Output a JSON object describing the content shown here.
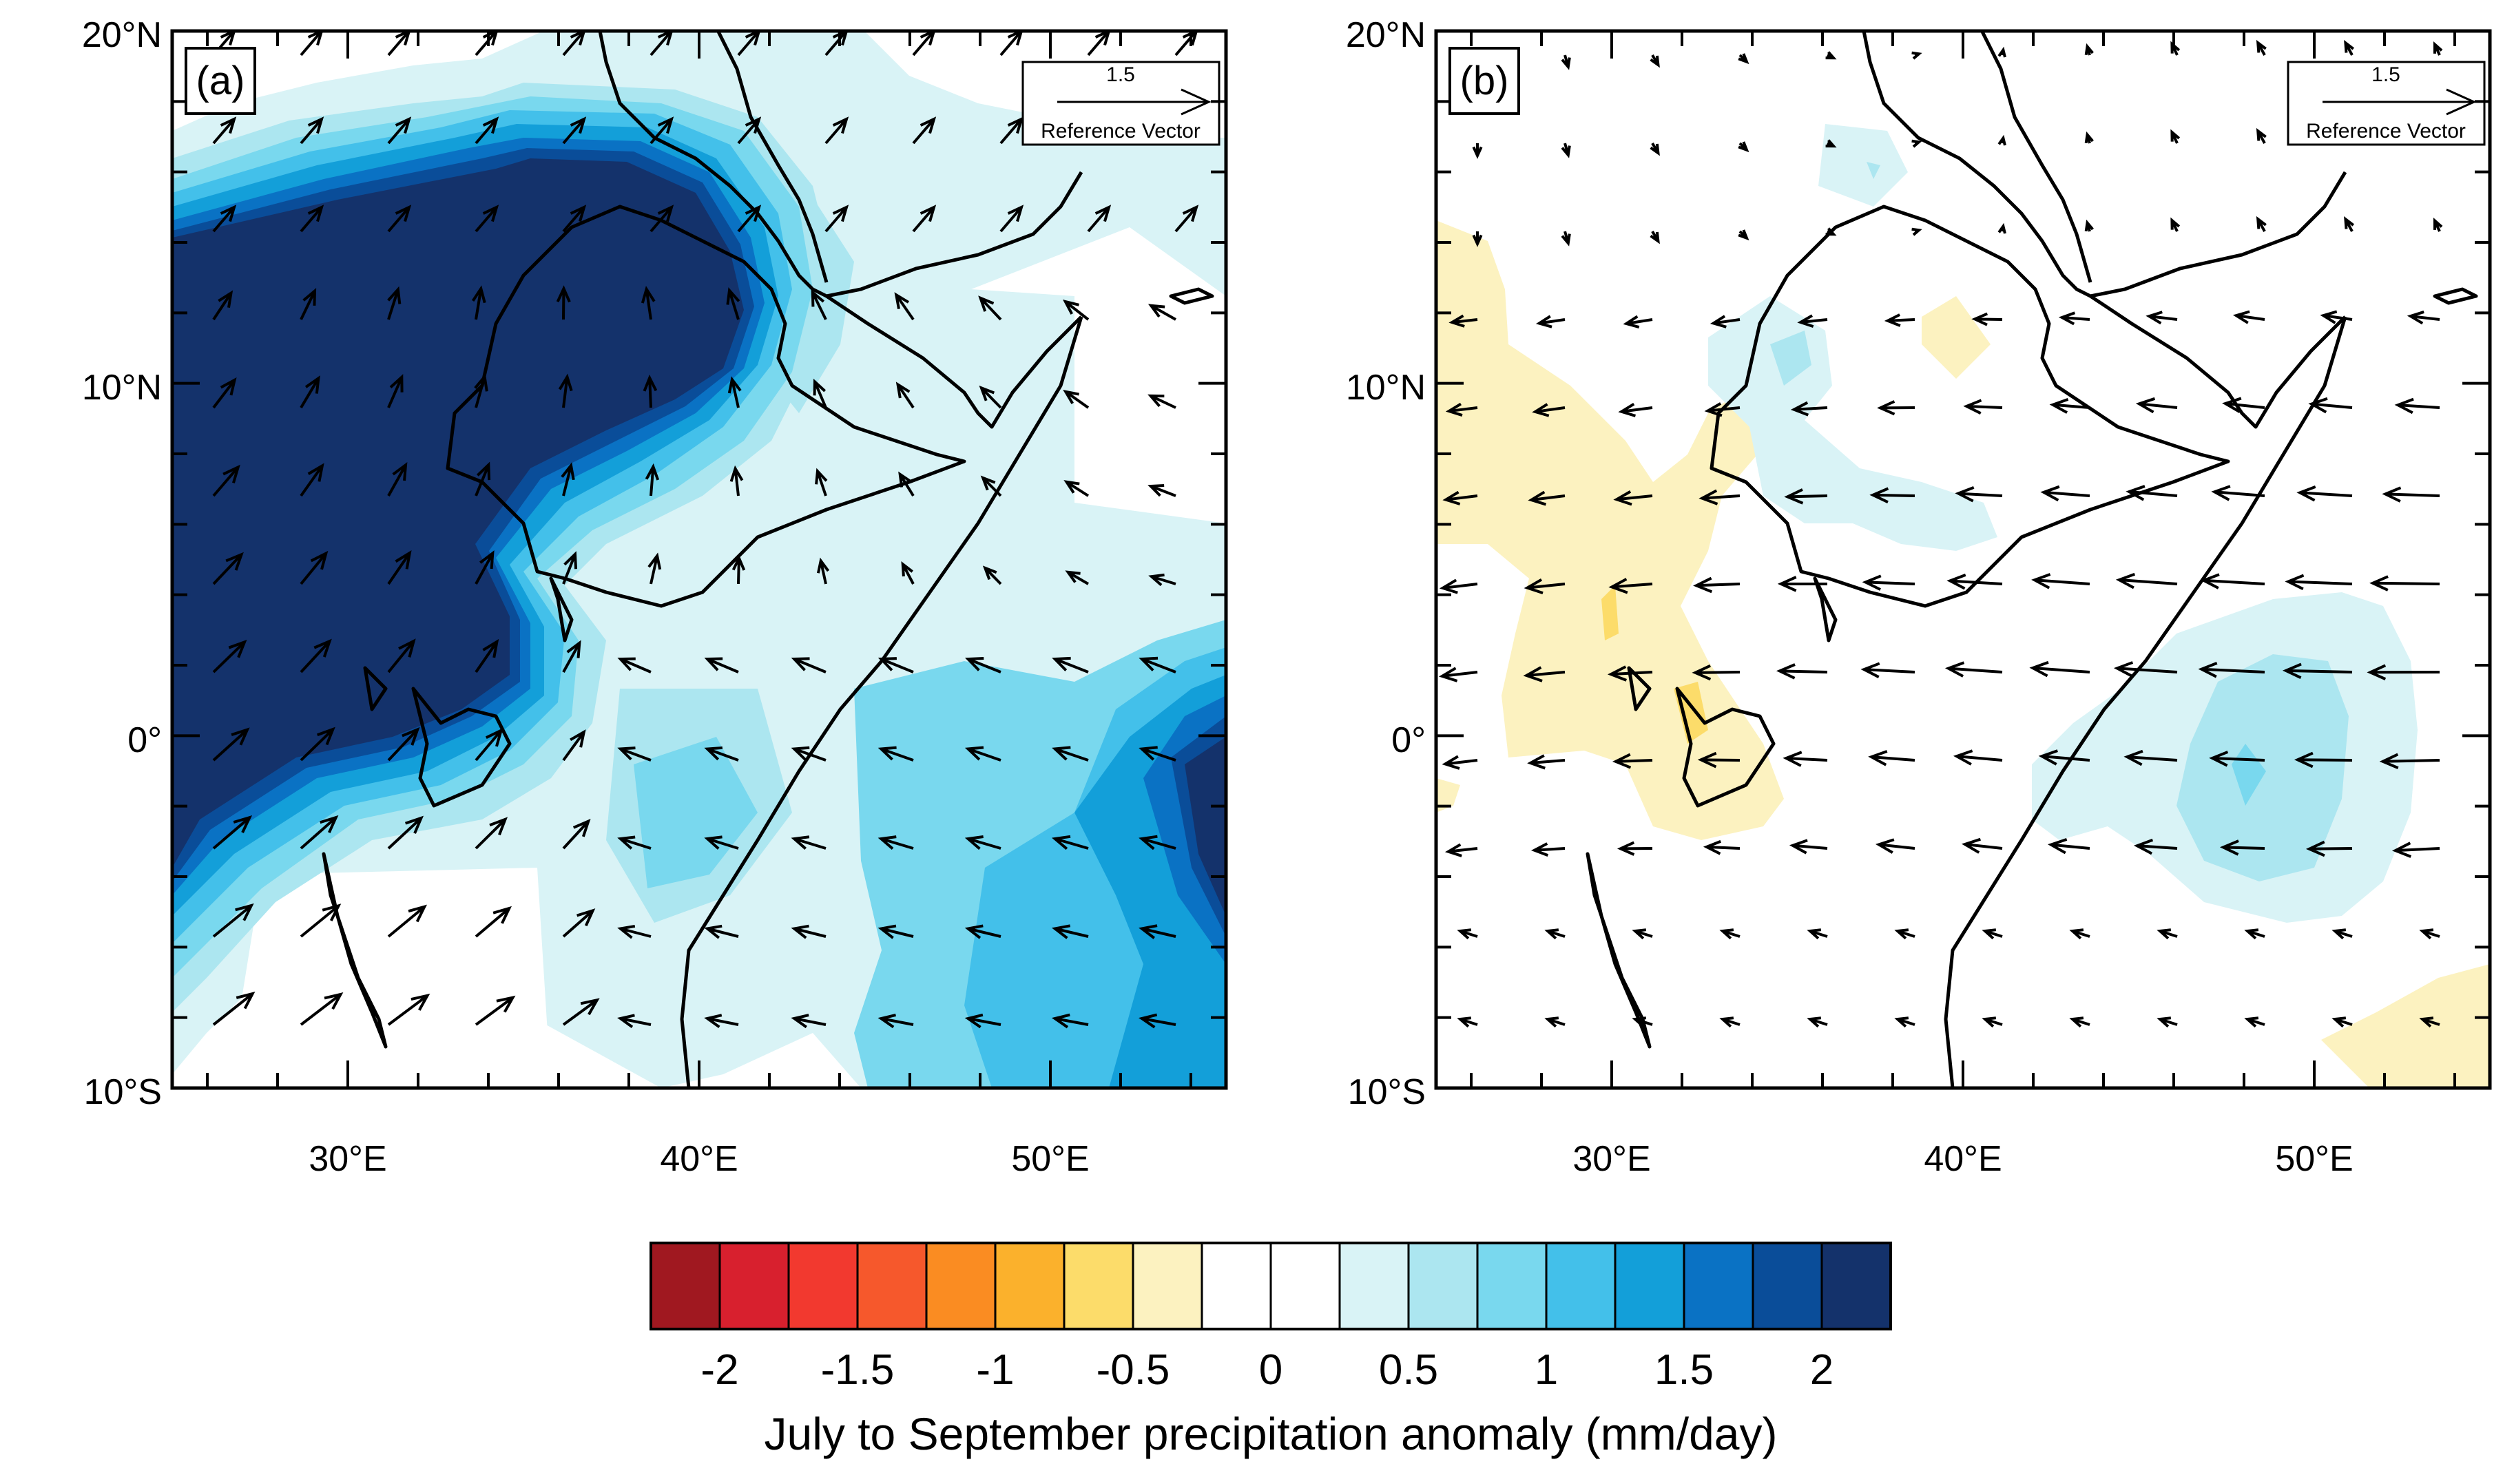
{
  "map": {
    "extent": {
      "lon": [
        25,
        55
      ],
      "lat": [
        -10,
        20
      ]
    },
    "lat_labels": [
      "20°N",
      "10°N",
      "0°",
      "10°S"
    ],
    "lon_labels": [
      "30°E",
      "40°E",
      "50°E"
    ],
    "panels": [
      {
        "id": "a",
        "label": "(a)"
      },
      {
        "id": "b",
        "label": "(b)"
      }
    ],
    "reference_vector": {
      "magnitude_label": "1.5",
      "caption": "Reference Vector"
    }
  },
  "colorbar": {
    "title": "July to September precipitation anomaly (mm/day)",
    "tick_labels": [
      "-2",
      "-1.5",
      "-1",
      "-0.5",
      "0",
      "0.5",
      "1",
      "1.5",
      "2"
    ],
    "colors": [
      "#a01820",
      "#d8202e",
      "#f2392f",
      "#f6582c",
      "#fa8c22",
      "#fbb12c",
      "#fcdc6a",
      "#fcf2c0",
      "#ffffff",
      "#ffffff",
      "#d9f3f6",
      "#ace6f0",
      "#79d8ee",
      "#43c0ea",
      "#139fd9",
      "#0a72c4",
      "#0a4d99",
      "#14326b"
    ]
  },
  "legend_icons": {
    "arrow": "wind-vector-arrow-icon"
  }
}
